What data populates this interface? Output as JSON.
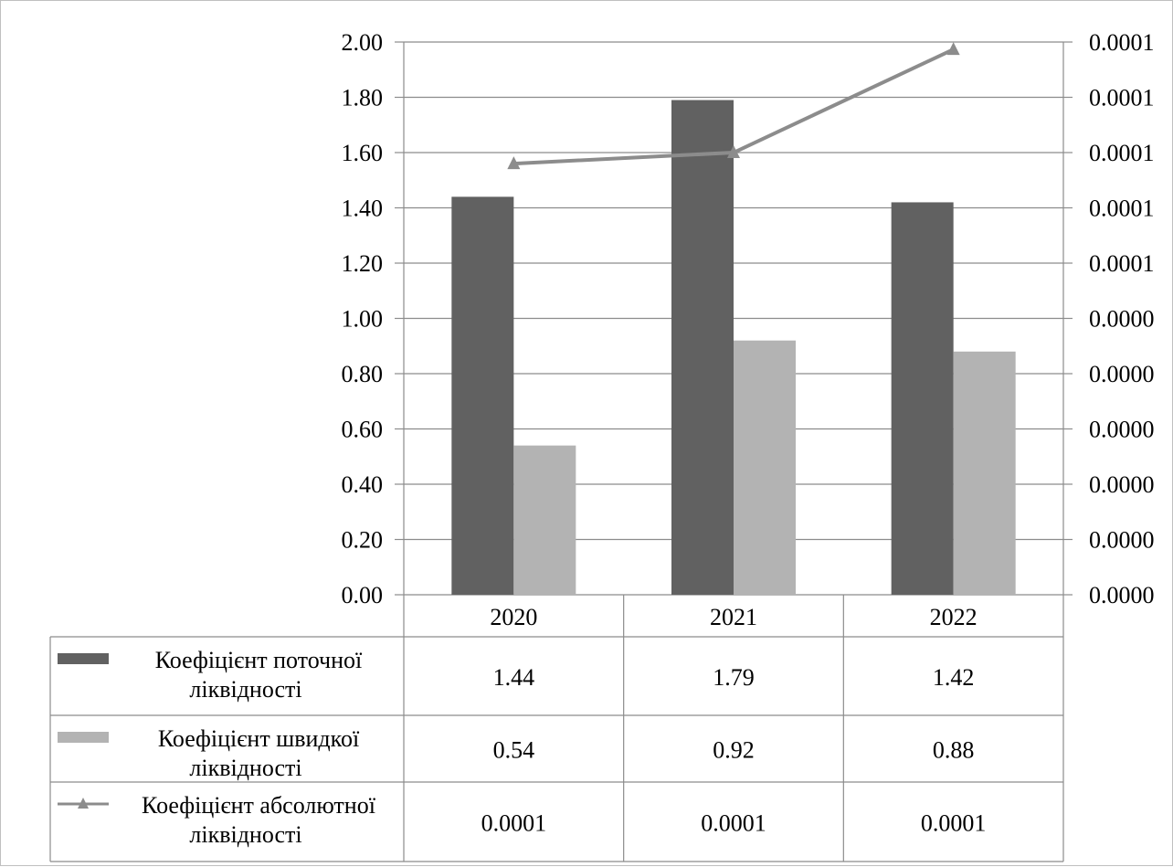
{
  "chart_data": {
    "type": "bar",
    "categories": [
      "2020",
      "2021",
      "2022"
    ],
    "series": [
      {
        "name": "Коефіцієнт поточної ліквідності",
        "type": "bar",
        "axis": "left",
        "color": "#616161",
        "values": [
          1.44,
          1.79,
          1.42
        ],
        "labels": [
          "1.44",
          "1.79",
          "1.42"
        ]
      },
      {
        "name": "Коефіцієнт швидкої ліквідності",
        "type": "bar",
        "axis": "left",
        "color": "#b3b3b3",
        "values": [
          0.54,
          0.92,
          0.88
        ],
        "labels": [
          "0.54",
          "0.92",
          "0.88"
        ]
      },
      {
        "name": "Коефіцієнт абсолютної ліквідності",
        "type": "line",
        "marker": "triangle",
        "axis": "right",
        "color": "#8c8c8c",
        "values": [
          0.000117,
          0.00012,
          0.000148
        ],
        "labels": [
          "0.0001",
          "0.0001",
          "0.0001"
        ]
      }
    ],
    "y_left": {
      "min": 0,
      "max": 2,
      "ticks": [
        "0.00",
        "0.20",
        "0.40",
        "0.60",
        "0.80",
        "1.00",
        "1.20",
        "1.40",
        "1.60",
        "1.80",
        "2.00"
      ]
    },
    "y_right": {
      "min": 0,
      "max": 0.00015,
      "ticks": [
        "0.0000",
        "0.0000",
        "0.0000",
        "0.0000",
        "0.0000",
        "0.0000",
        "0.0001",
        "0.0001",
        "0.0001",
        "0.0001",
        "0.0001"
      ]
    },
    "grid": "horizontal",
    "legend": "data-table"
  }
}
